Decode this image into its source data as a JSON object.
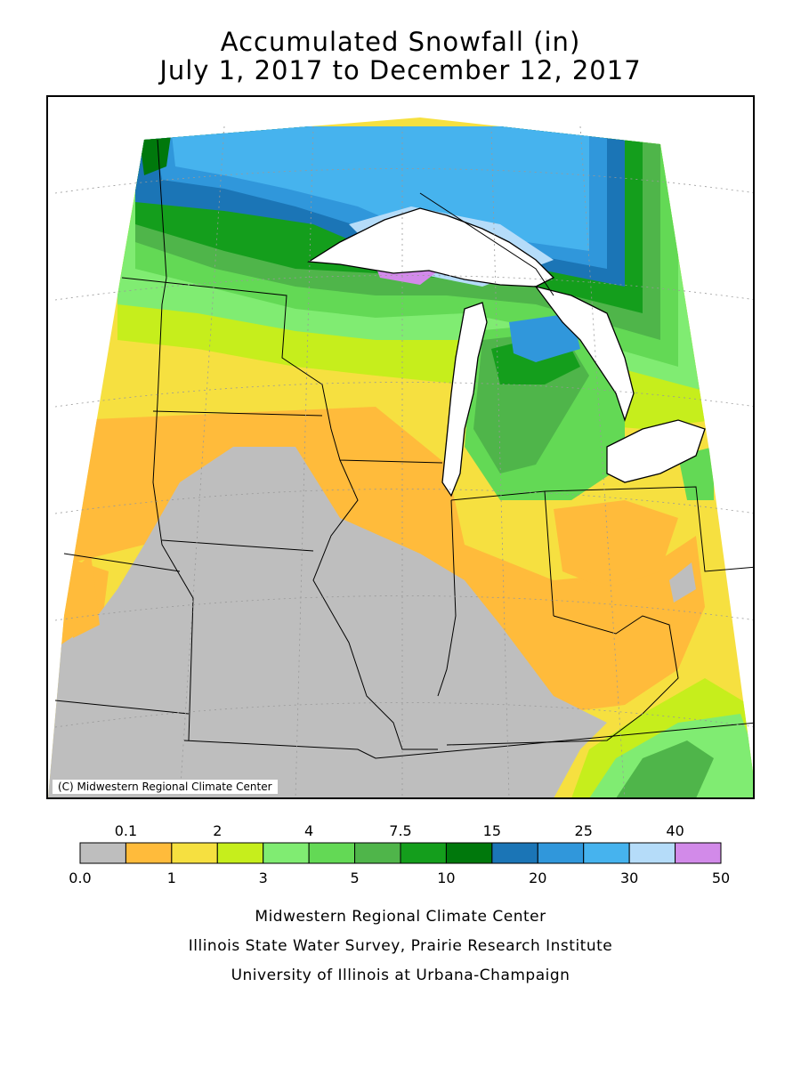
{
  "title": {
    "line1": "Accumulated Snowfall (in)",
    "line2": "July 1, 2017 to December 12, 2017"
  },
  "map": {
    "copyright": "(C) Midwestern Regional Climate Center",
    "region": "Upper Midwest / Great Lakes"
  },
  "legend": {
    "top_labels": [
      "0.1",
      "2",
      "4",
      "7.5",
      "15",
      "25",
      "40"
    ],
    "bottom_labels": [
      "0.0",
      "1",
      "3",
      "5",
      "10",
      "20",
      "30",
      "50"
    ],
    "bins": [
      {
        "range": "0.0-0.1",
        "color": "#bebebe"
      },
      {
        "range": "0.1-1",
        "color": "#ffbb3b"
      },
      {
        "range": "1-2",
        "color": "#f6e040"
      },
      {
        "range": "2-3",
        "color": "#c6ee1c"
      },
      {
        "range": "3-4",
        "color": "#80ec72"
      },
      {
        "range": "4-5",
        "color": "#63d955"
      },
      {
        "range": "5-7.5",
        "color": "#4fb54a"
      },
      {
        "range": "7.5-10",
        "color": "#149e1c"
      },
      {
        "range": "10-15",
        "color": "#00780c"
      },
      {
        "range": "15-20",
        "color": "#1b75b6"
      },
      {
        "range": "20-25",
        "color": "#3097db"
      },
      {
        "range": "25-30",
        "color": "#46b3ee"
      },
      {
        "range": "30-40",
        "color": "#b5dcf9"
      },
      {
        "range": "40-50",
        "color": "#d28ae9"
      }
    ]
  },
  "credits": {
    "line1": "Midwestern Regional Climate Center",
    "line2": "Illinois State Water Survey, Prairie Research Institute",
    "line3": "University of Illinois at Urbana-Champaign"
  }
}
